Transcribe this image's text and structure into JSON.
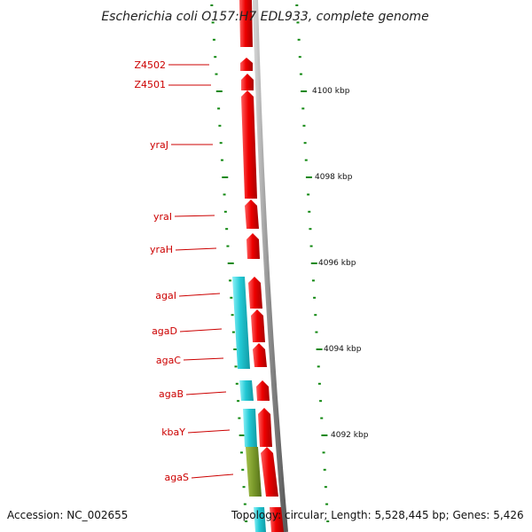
{
  "title": "Escherichia coli O157:H7 EDL933, complete genome",
  "footer": {
    "accession": "Accession: NC_002655",
    "summary": "Topology: circular; Length: 5,528,445 bp; Genes: 5,426"
  },
  "colors": {
    "cds": "#ee0000",
    "rna_feature": "#22c8d4",
    "olive_feature": "#7a9a2a",
    "backbone": "#8a8a8a",
    "tick": "#118811",
    "label": "#cc0000"
  },
  "gene_labels": [
    "Z4502",
    "Z4501",
    "yraJ",
    "yraI",
    "yraH",
    "agaI",
    "agaD",
    "agaC",
    "agaB",
    "kbaY",
    "agaS"
  ],
  "scale_labels": [
    "4100 kbp",
    "4098 kbp",
    "4096 kbp",
    "4094 kbp",
    "4092 kbp"
  ]
}
